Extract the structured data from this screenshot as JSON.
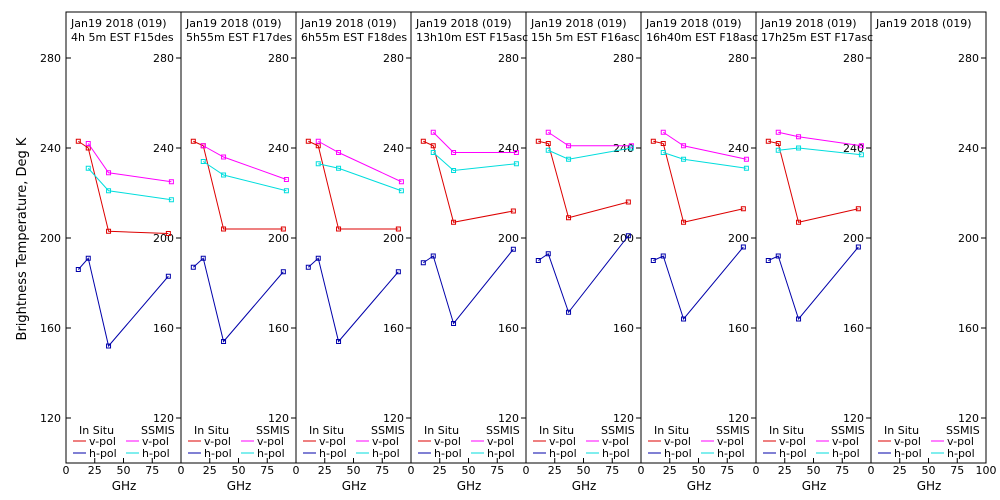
{
  "chart_data": {
    "type": "line",
    "ylabel": "Brightness Temperature, Deg K",
    "xlabel": "GHz",
    "ylim": [
      110,
      290
    ],
    "yticks": [
      120,
      160,
      200,
      240,
      280
    ],
    "xlim": [
      0,
      100
    ],
    "xticks": [
      0,
      25,
      50,
      75
    ],
    "xticks_last": [
      0,
      25,
      50,
      75,
      100
    ],
    "frequencies": [
      10.7,
      19.35,
      37,
      89
    ],
    "legend": {
      "insitu_header": "In Situ",
      "ssmis_header": "SSMIS",
      "vpol": "v-pol",
      "hpol": "h-pol"
    },
    "colors": {
      "insitu_v": "#dd0000",
      "insitu_h": "#0000aa",
      "ssmis_v": "#ff00ff",
      "ssmis_h": "#00dddd"
    },
    "panels": [
      {
        "line1": "Jan19 2018 (019)",
        "line2": "4h 5m  EST F15des",
        "insitu_v": [
          243,
          240,
          203,
          202
        ],
        "insitu_h": [
          186,
          191,
          152,
          183
        ],
        "ssmis_f": [
          19.35,
          37,
          91.65
        ],
        "ssmis_v": [
          242,
          229,
          225
        ],
        "ssmis_h": [
          231,
          221,
          217
        ]
      },
      {
        "line1": "Jan19 2018 (019)",
        "line2": "5h55m  EST F17des",
        "insitu_v": [
          243,
          241,
          204,
          204
        ],
        "insitu_h": [
          187,
          191,
          154,
          185
        ],
        "ssmis_f": [
          19.35,
          37,
          91.65
        ],
        "ssmis_v": [
          241,
          236,
          226
        ],
        "ssmis_h": [
          234,
          228,
          221
        ]
      },
      {
        "line1": "Jan19 2018 (019)",
        "line2": "6h55m  EST F18des",
        "insitu_v": [
          243,
          241,
          204,
          204
        ],
        "insitu_h": [
          187,
          191,
          154,
          185
        ],
        "ssmis_f": [
          19.35,
          37,
          91.65
        ],
        "ssmis_v": [
          243,
          238,
          225
        ],
        "ssmis_h": [
          233,
          231,
          221
        ]
      },
      {
        "line1": "Jan19 2018 (019)",
        "line2": "13h10m EST F15asc",
        "insitu_v": [
          243,
          241,
          207,
          212
        ],
        "insitu_h": [
          189,
          192,
          162,
          195
        ],
        "ssmis_f": [
          19.35,
          37,
          91.65
        ],
        "ssmis_v": [
          247,
          238,
          238
        ],
        "ssmis_h": [
          238,
          230,
          233
        ]
      },
      {
        "line1": "Jan19 2018 (019)",
        "line2": "15h 5m  EST F16asc",
        "insitu_v": [
          243,
          242,
          209,
          216
        ],
        "insitu_h": [
          190,
          193,
          167,
          201
        ],
        "ssmis_f": [
          19.35,
          37,
          91.65
        ],
        "ssmis_v": [
          247,
          241,
          241
        ],
        "ssmis_h": [
          239,
          235,
          240
        ]
      },
      {
        "line1": "Jan19 2018 (019)",
        "line2": "16h40m EST F18asc",
        "insitu_v": [
          243,
          242,
          207,
          213
        ],
        "insitu_h": [
          190,
          192,
          164,
          196
        ],
        "ssmis_f": [
          19.35,
          37,
          91.65
        ],
        "ssmis_v": [
          247,
          241,
          235
        ],
        "ssmis_h": [
          238,
          235,
          231
        ]
      },
      {
        "line1": "Jan19 2018 (019)",
        "line2": "17h25m  EST F17asc",
        "insitu_v": [
          243,
          242,
          207,
          213
        ],
        "insitu_h": [
          190,
          192,
          164,
          196
        ],
        "ssmis_f": [
          19.35,
          37,
          91.65
        ],
        "ssmis_v": [
          247,
          245,
          241
        ],
        "ssmis_h": [
          239,
          240,
          237
        ]
      },
      {
        "line1": "Jan19 2018 (019)",
        "line2": "",
        "insitu_v": [],
        "insitu_h": [],
        "ssmis_f": [],
        "ssmis_v": [],
        "ssmis_h": []
      }
    ]
  }
}
